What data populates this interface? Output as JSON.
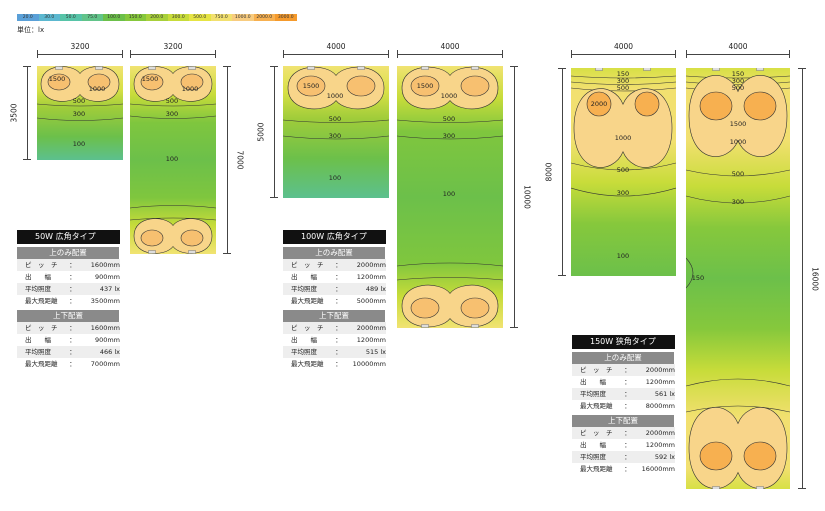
{
  "scale": {
    "values": [
      "20.0",
      "30.0",
      "50.0",
      "75.0",
      "100.0",
      "150.0",
      "200.0",
      "300.0",
      "500.0",
      "750.0",
      "1000.0",
      "2000.0",
      "3000.0"
    ],
    "colors": [
      "#5aa0d8",
      "#5cb8d0",
      "#57c4a8",
      "#62c48a",
      "#6cc04a",
      "#86c83c",
      "#a8d03a",
      "#c8dc3a",
      "#e6e444",
      "#f2e070",
      "#f8cc80",
      "#f7b050",
      "#f59a2c"
    ]
  },
  "unit_label": "単位：lx",
  "panels": {
    "p50a": {
      "width_label": "3200",
      "height_label": "3500",
      "levels": [
        {
          "l": "1500",
          "t": "1500"
        },
        {
          "l": "1000",
          "t": "1000"
        },
        {
          "l": "500",
          "t": "500"
        },
        {
          "l": "300",
          "t": "300"
        },
        {
          "l": "100",
          "t": "100"
        }
      ]
    },
    "p50b": {
      "width_label": "3200",
      "height_label": "7000",
      "levels": [
        {
          "t": "1500"
        },
        {
          "t": "1000"
        },
        {
          "t": "500"
        },
        {
          "t": "300"
        },
        {
          "t": "100"
        }
      ]
    },
    "p100a": {
      "width_label": "4000",
      "height_label": "5000",
      "levels": [
        {
          "t": "1500"
        },
        {
          "t": "1000"
        },
        {
          "t": "500"
        },
        {
          "t": "300"
        },
        {
          "t": "100"
        }
      ]
    },
    "p100b": {
      "width_label": "4000",
      "height_label": "10000",
      "levels": [
        {
          "t": "1500"
        },
        {
          "t": "1000"
        },
        {
          "t": "500"
        },
        {
          "t": "300"
        },
        {
          "t": "100"
        }
      ]
    },
    "p150a": {
      "width_label": "4000",
      "height_label": "8000",
      "levels": [
        {
          "t": "150"
        },
        {
          "t": "300"
        },
        {
          "t": "500"
        },
        {
          "t": "2000"
        },
        {
          "t": "1000"
        },
        {
          "t": "500"
        },
        {
          "t": "300"
        },
        {
          "t": "100"
        }
      ]
    },
    "p150b": {
      "width_label": "4000",
      "height_label": "16000",
      "levels": [
        {
          "t": "150"
        },
        {
          "t": "300"
        },
        {
          "t": "500"
        },
        {
          "t": "1500"
        },
        {
          "t": "1000"
        },
        {
          "t": "500"
        },
        {
          "t": "300"
        },
        {
          "t": "150"
        }
      ]
    }
  },
  "specs": {
    "w50": {
      "title": "50W 広角タイプ",
      "top_only": {
        "header": "上のみ配置",
        "rows": [
          [
            "ピ　ッ　チ",
            "：",
            "1600mm"
          ],
          [
            "出　　幅",
            "：",
            "900mm"
          ],
          [
            "平均照度",
            "：",
            "437 lx"
          ],
          [
            "最大飛距離",
            "：",
            "3500mm"
          ]
        ]
      },
      "top_bottom": {
        "header": "上下配置",
        "rows": [
          [
            "ピ　ッ　チ",
            "：",
            "1600mm"
          ],
          [
            "出　　幅",
            "：",
            "900mm"
          ],
          [
            "平均照度",
            "：",
            "466 lx"
          ],
          [
            "最大飛距離",
            "：",
            "7000mm"
          ]
        ]
      }
    },
    "w100": {
      "title": "100W 広角タイプ",
      "top_only": {
        "header": "上のみ配置",
        "rows": [
          [
            "ピ　ッ　チ",
            "：",
            "2000mm"
          ],
          [
            "出　　幅",
            "：",
            "1200mm"
          ],
          [
            "平均照度",
            "：",
            "489 lx"
          ],
          [
            "最大飛距離",
            "：",
            "5000mm"
          ]
        ]
      },
      "top_bottom": {
        "header": "上下配置",
        "rows": [
          [
            "ピ　ッ　チ",
            "：",
            "2000mm"
          ],
          [
            "出　　幅",
            "：",
            "1200mm"
          ],
          [
            "平均照度",
            "：",
            "515 lx"
          ],
          [
            "最大飛距離",
            "：",
            "10000mm"
          ]
        ]
      }
    },
    "w150": {
      "title": "150W 狭角タイプ",
      "top_only": {
        "header": "上のみ配置",
        "rows": [
          [
            "ピ　ッ　チ",
            "：",
            "2000mm"
          ],
          [
            "出　　幅",
            "：",
            "1200mm"
          ],
          [
            "平均照度",
            "：",
            "561 lx"
          ],
          [
            "最大飛距離",
            "：",
            "8000mm"
          ]
        ]
      },
      "top_bottom": {
        "header": "上下配置",
        "rows": [
          [
            "ピ　ッ　チ",
            "：",
            "2000mm"
          ],
          [
            "出　　幅",
            "：",
            "1200mm"
          ],
          [
            "平均照度",
            "：",
            "592 lx"
          ],
          [
            "最大飛距離",
            "：",
            "16000mm"
          ]
        ]
      }
    }
  }
}
